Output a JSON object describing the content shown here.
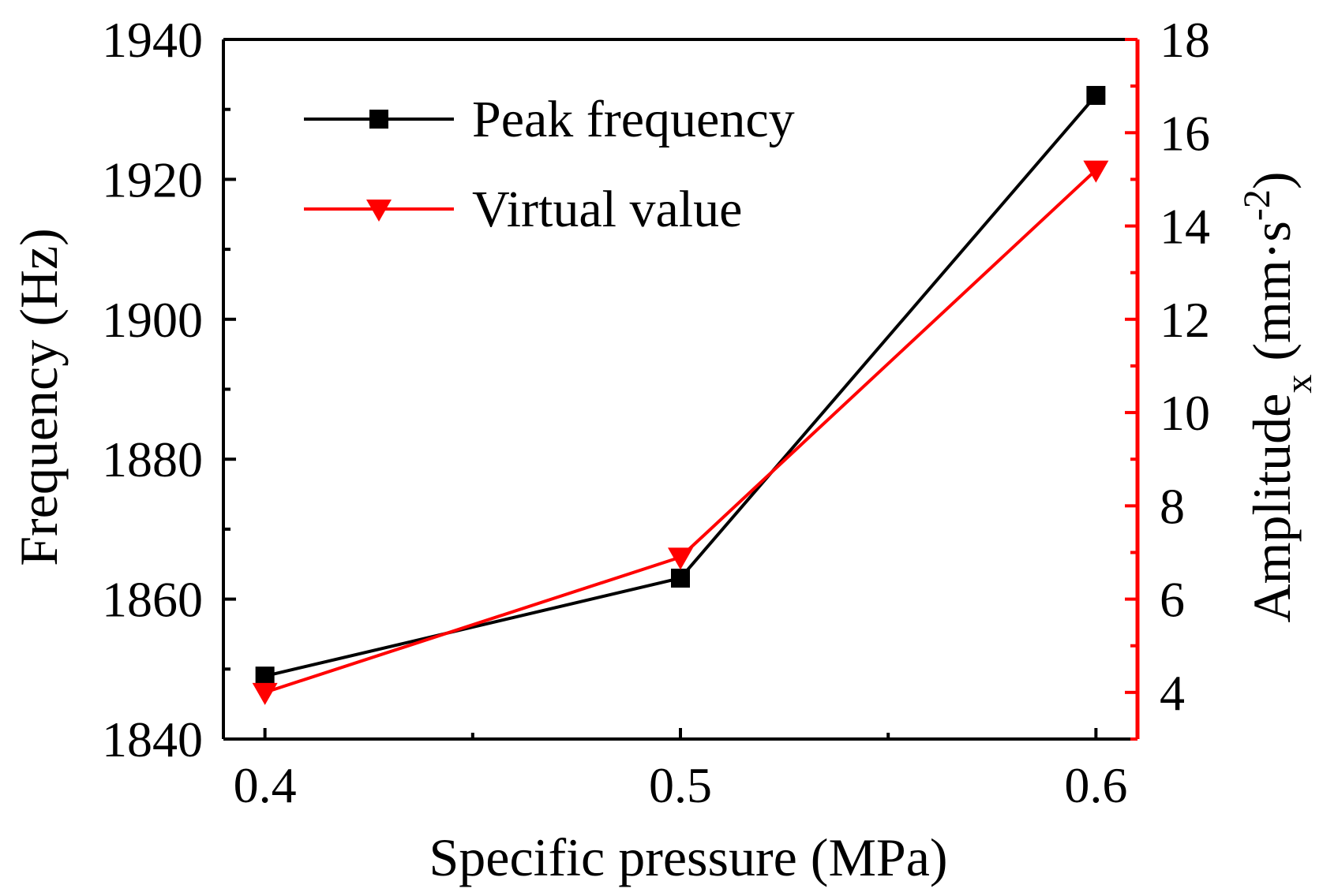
{
  "chart_data": {
    "type": "line",
    "xlabel": "Specific pressure (MPa)",
    "ylabel_left": "Frequency (Hz)",
    "ylabel_right": {
      "base": "Amplitude",
      "subscript": "x",
      "unit_open": " (mm·s",
      "superscript": "-2",
      "unit_close": ")"
    },
    "x": [
      0.4,
      0.5,
      0.6
    ],
    "x_ticks": [
      "0.4",
      "0.5",
      "0.6"
    ],
    "xlim": [
      0.39,
      0.61
    ],
    "ylim_left": [
      1840,
      1940
    ],
    "y_ticks_left": [
      "1840",
      "1860",
      "1880",
      "1900",
      "1920",
      "1940"
    ],
    "ylim_right": [
      3,
      18
    ],
    "y_ticks_right": [
      "4",
      "6",
      "8",
      "10",
      "12",
      "14",
      "16",
      "18"
    ],
    "series": [
      {
        "name": "Peak frequency",
        "axis": "left",
        "values": [
          1849,
          1863,
          1932
        ],
        "color": "#000000",
        "marker": "square"
      },
      {
        "name": "Virtual value",
        "axis": "right",
        "values": [
          4.0,
          6.9,
          15.2
        ],
        "color": "#ff0000",
        "marker": "triangle-down"
      }
    ],
    "legend_placement": "top-left",
    "grid": false,
    "colors": {
      "left_axis": "#000000",
      "right_axis": "#ff0000"
    }
  }
}
